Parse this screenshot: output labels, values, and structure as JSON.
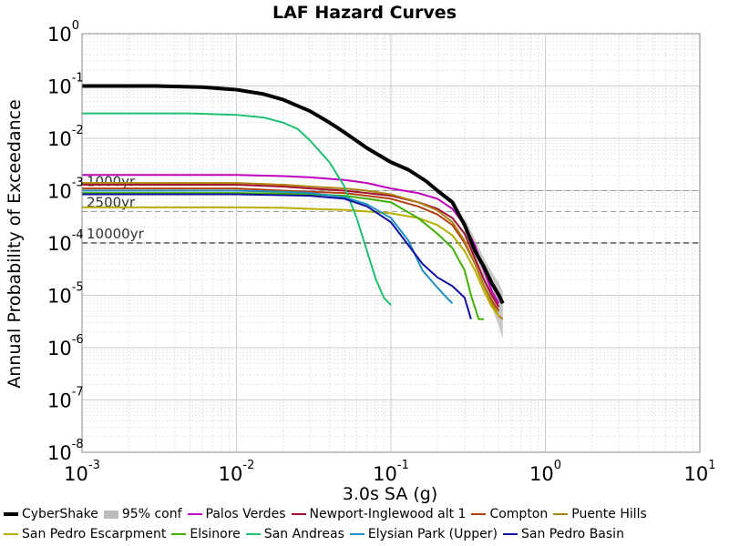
{
  "chart_data": {
    "type": "line",
    "title": "LAF Hazard Curves",
    "xlabel": "3.0s SA (g)",
    "ylabel": "Annual Probability of Exceedance",
    "xscale": "log",
    "yscale": "log",
    "xlim": [
      0.001,
      10
    ],
    "ylim": [
      1e-08,
      1
    ],
    "grid": true,
    "legend_position": "bottom",
    "x_ticks": [
      {
        "base": "10",
        "exp": "-3"
      },
      {
        "base": "10",
        "exp": "-2"
      },
      {
        "base": "10",
        "exp": "-1"
      },
      {
        "base": "10",
        "exp": "0"
      },
      {
        "base": "10",
        "exp": "1"
      }
    ],
    "y_ticks": [
      {
        "base": "10",
        "exp": "0"
      },
      {
        "base": "10",
        "exp": "-1"
      },
      {
        "base": "10",
        "exp": "-2"
      },
      {
        "base": "10",
        "exp": "-3"
      },
      {
        "base": "10",
        "exp": "-4"
      },
      {
        "base": "10",
        "exp": "-5"
      },
      {
        "base": "10",
        "exp": "-6"
      },
      {
        "base": "10",
        "exp": "-7"
      },
      {
        "base": "10",
        "exp": "-8"
      }
    ],
    "reference_lines": [
      {
        "label": "1000yr",
        "y": 0.001
      },
      {
        "label": "2500yr",
        "y": 0.0004
      },
      {
        "label": "10000yr",
        "y": 0.0001
      }
    ],
    "confidence_band": {
      "name": "95% conf",
      "color": "#bbbbbb",
      "x": [
        0.3,
        0.35,
        0.4,
        0.45,
        0.5,
        0.53
      ],
      "upper": [
        0.0003,
        0.00012,
        5e-05,
        2.8e-05,
        1.7e-05,
        1.2e-05
      ],
      "lower": [
        0.00018,
        5e-05,
        1.5e-05,
        6e-06,
        2.5e-06,
        1.5e-06
      ]
    },
    "series": [
      {
        "name": "CyberShake",
        "color": "#000000",
        "width": 4,
        "x": [
          0.001,
          0.003,
          0.006,
          0.01,
          0.015,
          0.02,
          0.03,
          0.04,
          0.05,
          0.07,
          0.1,
          0.13,
          0.17,
          0.2,
          0.25,
          0.3,
          0.35,
          0.4,
          0.45,
          0.5,
          0.53
        ],
        "y": [
          0.1,
          0.1,
          0.095,
          0.085,
          0.07,
          0.055,
          0.033,
          0.02,
          0.013,
          0.0065,
          0.0035,
          0.0025,
          0.0015,
          0.001,
          0.0006,
          0.00022,
          7e-05,
          3.5e-05,
          1.7e-05,
          1e-05,
          7e-06
        ]
      },
      {
        "name": "95% conf",
        "color": "#bbbbbb",
        "width": 8,
        "band": true
      },
      {
        "name": "Palos Verdes",
        "color": "#c000c0",
        "width": 2,
        "x": [
          0.001,
          0.01,
          0.02,
          0.03,
          0.05,
          0.07,
          0.1,
          0.15,
          0.2,
          0.25,
          0.3,
          0.35,
          0.4,
          0.45,
          0.5
        ],
        "y": [
          0.002,
          0.002,
          0.0019,
          0.0018,
          0.0016,
          0.0014,
          0.0011,
          0.0009,
          0.0007,
          0.00045,
          0.00022,
          9e-05,
          3e-05,
          1.2e-05,
          7e-06
        ]
      },
      {
        "name": "Newport-Inglewood alt 1",
        "color": "#a01030",
        "width": 2,
        "x": [
          0.001,
          0.01,
          0.02,
          0.03,
          0.05,
          0.07,
          0.1,
          0.15,
          0.2,
          0.25,
          0.3,
          0.35,
          0.4,
          0.45,
          0.5
        ],
        "y": [
          0.0013,
          0.0013,
          0.0012,
          0.0011,
          0.001,
          0.0009,
          0.0008,
          0.0006,
          0.00045,
          0.0003,
          0.00015,
          5e-05,
          2e-05,
          1e-05,
          6e-06
        ]
      },
      {
        "name": "Compton",
        "color": "#b04010",
        "width": 2,
        "x": [
          0.001,
          0.01,
          0.02,
          0.03,
          0.05,
          0.07,
          0.1,
          0.15,
          0.2,
          0.25,
          0.3,
          0.35,
          0.4,
          0.45,
          0.5
        ],
        "y": [
          0.0011,
          0.0011,
          0.001,
          0.00095,
          0.0009,
          0.0008,
          0.0007,
          0.0005,
          0.00035,
          0.00022,
          0.0001,
          4e-05,
          1.5e-05,
          8e-06,
          5e-06
        ]
      },
      {
        "name": "Puente Hills",
        "color": "#b08010",
        "width": 2,
        "x": [
          0.001,
          0.01,
          0.02,
          0.03,
          0.05,
          0.07,
          0.1,
          0.15,
          0.2,
          0.25,
          0.3,
          0.35,
          0.4,
          0.45,
          0.5,
          0.53
        ],
        "y": [
          0.0014,
          0.0014,
          0.0013,
          0.0012,
          0.0011,
          0.001,
          0.00085,
          0.0006,
          0.00042,
          0.00025,
          0.00011,
          4e-05,
          1.5e-05,
          7e-06,
          4e-06,
          3.5e-06
        ]
      },
      {
        "name": "San Pedro Escarpment",
        "color": "#b8b000",
        "width": 2,
        "x": [
          0.001,
          0.01,
          0.02,
          0.03,
          0.05,
          0.07,
          0.1,
          0.15,
          0.2,
          0.25,
          0.3,
          0.35,
          0.4,
          0.45,
          0.5
        ],
        "y": [
          0.00048,
          0.00048,
          0.00047,
          0.00045,
          0.00043,
          0.0004,
          0.00037,
          0.0003,
          0.00022,
          0.00014,
          7e-05,
          3e-05,
          1.2e-05,
          6e-06,
          4e-06
        ]
      },
      {
        "name": "Elsinore",
        "color": "#40b000",
        "width": 2,
        "x": [
          0.001,
          0.01,
          0.02,
          0.03,
          0.05,
          0.07,
          0.1,
          0.15,
          0.2,
          0.25,
          0.3,
          0.33,
          0.37,
          0.4
        ],
        "y": [
          0.0009,
          0.0009,
          0.00088,
          0.00085,
          0.0008,
          0.0007,
          0.0006,
          0.0003,
          0.00015,
          8e-05,
          3e-05,
          1e-05,
          3.5e-06,
          3.5e-06
        ]
      },
      {
        "name": "San Andreas",
        "color": "#20c070",
        "width": 2,
        "x": [
          0.001,
          0.005,
          0.01,
          0.015,
          0.02,
          0.025,
          0.03,
          0.04,
          0.05,
          0.06,
          0.07,
          0.08,
          0.09,
          0.1
        ],
        "y": [
          0.03,
          0.03,
          0.028,
          0.025,
          0.02,
          0.015,
          0.009,
          0.0035,
          0.0012,
          0.0003,
          7e-05,
          2e-05,
          9e-06,
          6.5e-06
        ]
      },
      {
        "name": "Elysian Park (Upper)",
        "color": "#2090c0",
        "width": 2,
        "x": [
          0.001,
          0.01,
          0.02,
          0.03,
          0.05,
          0.07,
          0.1,
          0.13,
          0.16,
          0.2,
          0.23,
          0.25
        ],
        "y": [
          0.001,
          0.001,
          0.00095,
          0.0009,
          0.00075,
          0.00055,
          0.0003,
          0.00011,
          3e-05,
          1.4e-05,
          9e-06,
          7e-06
        ]
      },
      {
        "name": "San Pedro Basin",
        "color": "#1010a0",
        "width": 2,
        "x": [
          0.001,
          0.01,
          0.02,
          0.03,
          0.05,
          0.07,
          0.1,
          0.13,
          0.16,
          0.2,
          0.25,
          0.3,
          0.33
        ],
        "y": [
          0.00085,
          0.00085,
          0.00082,
          0.0008,
          0.0007,
          0.0005,
          0.00025,
          9e-05,
          4e-05,
          2.2e-05,
          1.5e-05,
          9e-06,
          3.5e-06
        ]
      }
    ]
  }
}
